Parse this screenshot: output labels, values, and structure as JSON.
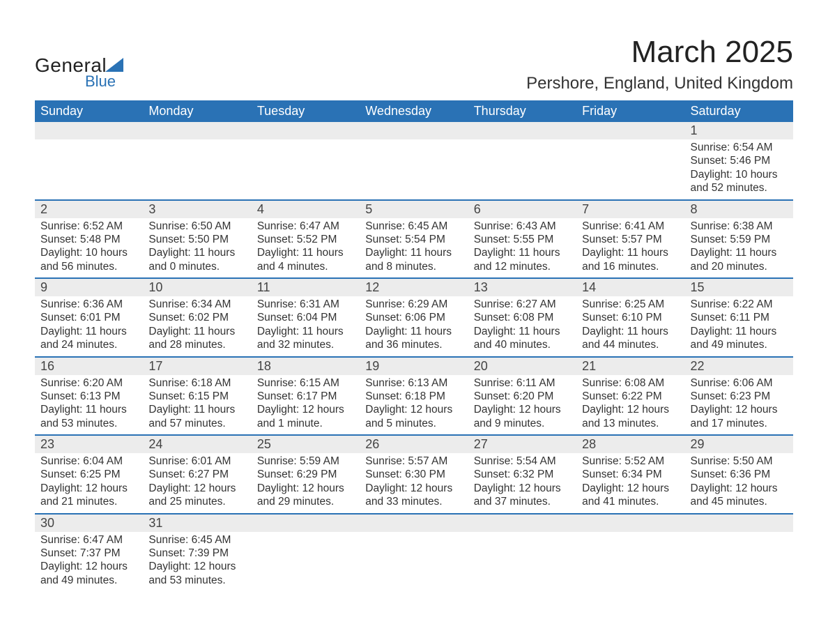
{
  "brand": {
    "name_part1": "General",
    "name_part2": "Blue"
  },
  "title": "March 2025",
  "subtitle": "Pershore, England, United Kingdom",
  "calendar": {
    "type": "table",
    "header_bg": "#2a72b5",
    "header_fg": "#ffffff",
    "daynum_bg": "#ececec",
    "row_border_color": "#2a72b5",
    "text_color": "#333333",
    "font_family": "Arial",
    "columns": [
      "Sunday",
      "Monday",
      "Tuesday",
      "Wednesday",
      "Thursday",
      "Friday",
      "Saturday"
    ],
    "weeks": [
      [
        null,
        null,
        null,
        null,
        null,
        null,
        {
          "n": "1",
          "sunrise": "6:54 AM",
          "sunset": "5:46 PM",
          "daylight": "10 hours and 52 minutes."
        }
      ],
      [
        {
          "n": "2",
          "sunrise": "6:52 AM",
          "sunset": "5:48 PM",
          "daylight": "10 hours and 56 minutes."
        },
        {
          "n": "3",
          "sunrise": "6:50 AM",
          "sunset": "5:50 PM",
          "daylight": "11 hours and 0 minutes."
        },
        {
          "n": "4",
          "sunrise": "6:47 AM",
          "sunset": "5:52 PM",
          "daylight": "11 hours and 4 minutes."
        },
        {
          "n": "5",
          "sunrise": "6:45 AM",
          "sunset": "5:54 PM",
          "daylight": "11 hours and 8 minutes."
        },
        {
          "n": "6",
          "sunrise": "6:43 AM",
          "sunset": "5:55 PM",
          "daylight": "11 hours and 12 minutes."
        },
        {
          "n": "7",
          "sunrise": "6:41 AM",
          "sunset": "5:57 PM",
          "daylight": "11 hours and 16 minutes."
        },
        {
          "n": "8",
          "sunrise": "6:38 AM",
          "sunset": "5:59 PM",
          "daylight": "11 hours and 20 minutes."
        }
      ],
      [
        {
          "n": "9",
          "sunrise": "6:36 AM",
          "sunset": "6:01 PM",
          "daylight": "11 hours and 24 minutes."
        },
        {
          "n": "10",
          "sunrise": "6:34 AM",
          "sunset": "6:02 PM",
          "daylight": "11 hours and 28 minutes."
        },
        {
          "n": "11",
          "sunrise": "6:31 AM",
          "sunset": "6:04 PM",
          "daylight": "11 hours and 32 minutes."
        },
        {
          "n": "12",
          "sunrise": "6:29 AM",
          "sunset": "6:06 PM",
          "daylight": "11 hours and 36 minutes."
        },
        {
          "n": "13",
          "sunrise": "6:27 AM",
          "sunset": "6:08 PM",
          "daylight": "11 hours and 40 minutes."
        },
        {
          "n": "14",
          "sunrise": "6:25 AM",
          "sunset": "6:10 PM",
          "daylight": "11 hours and 44 minutes."
        },
        {
          "n": "15",
          "sunrise": "6:22 AM",
          "sunset": "6:11 PM",
          "daylight": "11 hours and 49 minutes."
        }
      ],
      [
        {
          "n": "16",
          "sunrise": "6:20 AM",
          "sunset": "6:13 PM",
          "daylight": "11 hours and 53 minutes."
        },
        {
          "n": "17",
          "sunrise": "6:18 AM",
          "sunset": "6:15 PM",
          "daylight": "11 hours and 57 minutes."
        },
        {
          "n": "18",
          "sunrise": "6:15 AM",
          "sunset": "6:17 PM",
          "daylight": "12 hours and 1 minute."
        },
        {
          "n": "19",
          "sunrise": "6:13 AM",
          "sunset": "6:18 PM",
          "daylight": "12 hours and 5 minutes."
        },
        {
          "n": "20",
          "sunrise": "6:11 AM",
          "sunset": "6:20 PM",
          "daylight": "12 hours and 9 minutes."
        },
        {
          "n": "21",
          "sunrise": "6:08 AM",
          "sunset": "6:22 PM",
          "daylight": "12 hours and 13 minutes."
        },
        {
          "n": "22",
          "sunrise": "6:06 AM",
          "sunset": "6:23 PM",
          "daylight": "12 hours and 17 minutes."
        }
      ],
      [
        {
          "n": "23",
          "sunrise": "6:04 AM",
          "sunset": "6:25 PM",
          "daylight": "12 hours and 21 minutes."
        },
        {
          "n": "24",
          "sunrise": "6:01 AM",
          "sunset": "6:27 PM",
          "daylight": "12 hours and 25 minutes."
        },
        {
          "n": "25",
          "sunrise": "5:59 AM",
          "sunset": "6:29 PM",
          "daylight": "12 hours and 29 minutes."
        },
        {
          "n": "26",
          "sunrise": "5:57 AM",
          "sunset": "6:30 PM",
          "daylight": "12 hours and 33 minutes."
        },
        {
          "n": "27",
          "sunrise": "5:54 AM",
          "sunset": "6:32 PM",
          "daylight": "12 hours and 37 minutes."
        },
        {
          "n": "28",
          "sunrise": "5:52 AM",
          "sunset": "6:34 PM",
          "daylight": "12 hours and 41 minutes."
        },
        {
          "n": "29",
          "sunrise": "5:50 AM",
          "sunset": "6:36 PM",
          "daylight": "12 hours and 45 minutes."
        }
      ],
      [
        {
          "n": "30",
          "sunrise": "6:47 AM",
          "sunset": "7:37 PM",
          "daylight": "12 hours and 49 minutes."
        },
        {
          "n": "31",
          "sunrise": "6:45 AM",
          "sunset": "7:39 PM",
          "daylight": "12 hours and 53 minutes."
        },
        null,
        null,
        null,
        null,
        null
      ]
    ],
    "labels": {
      "sunrise": "Sunrise:",
      "sunset": "Sunset:",
      "daylight": "Daylight:"
    }
  }
}
